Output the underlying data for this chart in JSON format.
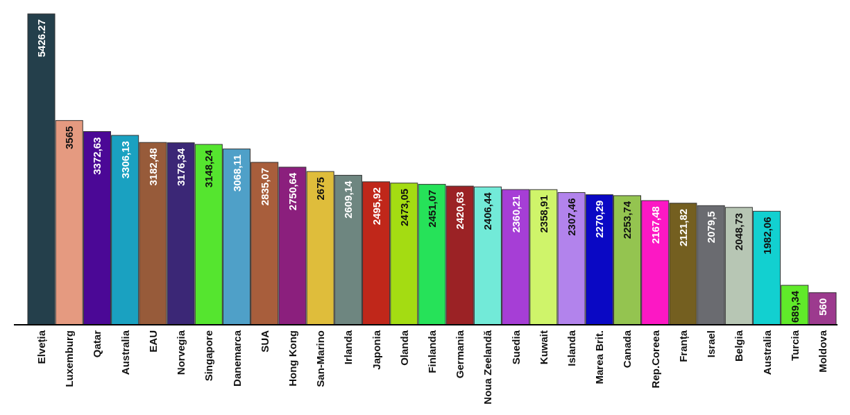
{
  "chart_data": {
    "type": "bar",
    "categories": [
      "Elveția",
      "Luxemburg",
      "Qatar",
      "Australia",
      "EAU",
      "Norvegia",
      "Singapore",
      "Danemarca",
      "SUA",
      "Hong Kong",
      "San-Marino",
      "Irlanda",
      "Japonia",
      "Olanda",
      "Finlanda",
      "Germania",
      "Noua Zeelandă",
      "Suedia",
      "Kuwait",
      "Islanda",
      "Marea Brit.",
      "Canada",
      "Rep.Coreea",
      "Franța",
      "Israel",
      "Belgia",
      "Australia",
      "Turcia",
      "Moldova"
    ],
    "values": [
      5426.27,
      3565,
      3372.63,
      3306.13,
      3182.48,
      3176.34,
      3148.24,
      3068.11,
      2835.07,
      2750.64,
      2675,
      2609.14,
      2495.92,
      2473.05,
      2451.07,
      2420.63,
      2406.44,
      2360.21,
      2358.91,
      2307.46,
      2270.29,
      2253.74,
      2167.48,
      2121.82,
      2079.5,
      2048.73,
      1982.06,
      689.34,
      560
    ],
    "value_labels": [
      "5426.27",
      "3565",
      "3372,63",
      "3306,13",
      "3182,48",
      "3176,34",
      "3148,24",
      "3068,11",
      "2835,07",
      "2750,64",
      "2675",
      "2609,14",
      "2495,92",
      "2473,05",
      "2451,07",
      "2420,63",
      "2406,44",
      "2360,21",
      "2358,91",
      "2307,46",
      "2270,29",
      "2253,74",
      "2167,48",
      "2121,82",
      "2079,5",
      "2048,73",
      "1982,06",
      "689,34",
      "560"
    ],
    "colors": [
      "#243f4b",
      "#e59a80",
      "#4b0896",
      "#1aa1c1",
      "#975b3a",
      "#3b2776",
      "#55e52f",
      "#4fa0c8",
      "#a85e3c",
      "#8b1f7d",
      "#dfbd3b",
      "#6e8680",
      "#c0271a",
      "#a4dc12",
      "#26e259",
      "#9b2225",
      "#72ead8",
      "#a63ed6",
      "#cff46a",
      "#b283ec",
      "#0a08c4",
      "#94c450",
      "#fc18c4",
      "#745f20",
      "#6a6b70",
      "#b7c6b4",
      "#12d0d0",
      "#60ea2a",
      "#9c3a8e"
    ]
  }
}
